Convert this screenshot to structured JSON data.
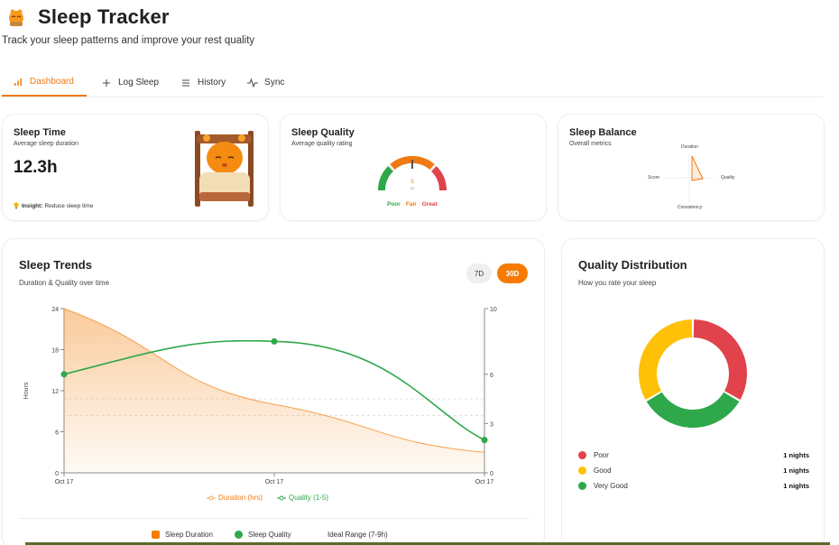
{
  "app": {
    "title": "Sleep Tracker",
    "subtitle": "Track your sleep patterns and improve your rest quality"
  },
  "tabs": [
    {
      "label": "Dashboard",
      "icon": "bar-chart-icon",
      "active": true
    },
    {
      "label": "Log Sleep",
      "icon": "plus-icon",
      "active": false
    },
    {
      "label": "History",
      "icon": "list-icon",
      "active": false
    },
    {
      "label": "Sync",
      "icon": "activity-icon",
      "active": false
    }
  ],
  "sleep_time": {
    "title": "Sleep Time",
    "subtitle": "Average sleep duration",
    "value": "12.3h",
    "insight_label": "Insight:",
    "insight_text": "Reduce sleep time"
  },
  "sleep_quality": {
    "title": "Sleep Quality",
    "subtitle": "Average quality rating",
    "gauge_value": "5",
    "gauge_unit": "/10",
    "labels": [
      "Poor",
      "Fair",
      "Great"
    ]
  },
  "sleep_balance": {
    "title": "Sleep Balance",
    "subtitle": "Overall metrics",
    "axes": [
      "Duration",
      "Quality",
      "Consistency",
      "Score"
    ]
  },
  "trends": {
    "title": "Sleep Trends",
    "subtitle": "Duration & Quality over time",
    "range_buttons": [
      "7D",
      "30D"
    ],
    "active_range": "30D",
    "y_left_label": "Hours",
    "legend_inline": [
      "Duration (hrs)",
      "Quality (1-5)"
    ],
    "bottom_legend": [
      "Sleep Duration",
      "Sleep Quality",
      "Ideal Range (7-9h)"
    ]
  },
  "distribution": {
    "title": "Quality Distribution",
    "subtitle": "How you rate your sleep",
    "items": [
      {
        "label": "Poor",
        "value": "1 nights",
        "color": "#e0434b"
      },
      {
        "label": "Good",
        "value": "1 nights",
        "color": "#ffc107"
      },
      {
        "label": "Very Good",
        "value": "1 nights",
        "color": "#2ea84a"
      }
    ]
  },
  "colors": {
    "accent": "#f57c00",
    "duration": "#f5a04a",
    "quality": "#2ea84a",
    "poor": "#e0434b",
    "good": "#ffc107"
  },
  "chart_data": [
    {
      "type": "line",
      "title": "Sleep Trends",
      "categories": [
        "Oct 17",
        "Oct 17",
        "Oct 17"
      ],
      "series": [
        {
          "name": "Duration (hrs)",
          "axis": "left",
          "type": "area",
          "values": [
            24,
            10,
            3
          ]
        },
        {
          "name": "Quality (1-5)",
          "axis": "right",
          "type": "line",
          "values": [
            6,
            8,
            2
          ]
        }
      ],
      "ylabel": "Hours",
      "y_left_ticks": [
        0,
        6,
        12,
        18,
        24
      ],
      "y_right_ticks": [
        0,
        3,
        6,
        10
      ],
      "ylim_left": [
        0,
        24
      ],
      "ylim_right": [
        0,
        10
      ],
      "reference_lines_right": [
        3.5,
        4.5
      ]
    },
    {
      "type": "pie",
      "title": "Quality Distribution",
      "categories": [
        "Poor",
        "Good",
        "Very Good"
      ],
      "values": [
        1,
        1,
        1
      ]
    }
  ]
}
